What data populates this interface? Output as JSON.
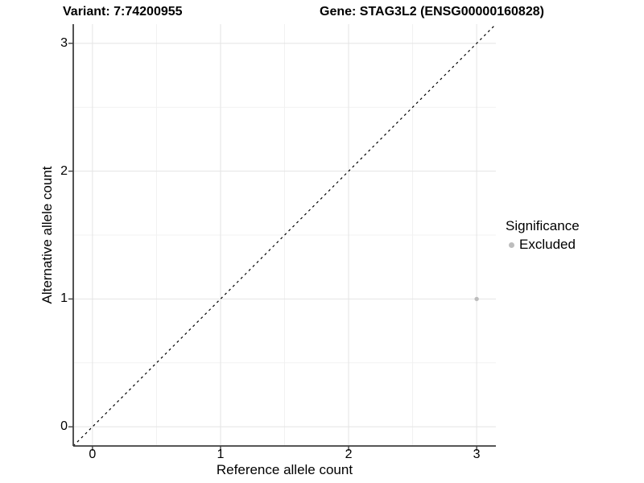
{
  "chart_data": {
    "type": "scatter",
    "title_left": "Variant: 7:74200955",
    "title_right": "Gene: STAG3L2 (ENSG00000160828)",
    "xlabel": "Reference allele count",
    "ylabel": "Alternative allele count",
    "xlim": [
      -0.15,
      3.15
    ],
    "ylim": [
      -0.15,
      3.15
    ],
    "x_ticks": [
      0,
      1,
      2,
      3
    ],
    "y_ticks": [
      0,
      1,
      2,
      3
    ],
    "minor_gridlines": [
      0.5,
      1.5,
      2.5
    ],
    "grid": "major at integers, minor at half-integers, light gray on white panel",
    "reference_line": {
      "style": "dashed",
      "equation": "y = x",
      "from": [
        -0.15,
        -0.15
      ],
      "to": [
        3.15,
        3.15
      ]
    },
    "series": [
      {
        "name": "Excluded",
        "color": "#BDBDBD",
        "points": [
          {
            "x": 3,
            "y": 1
          }
        ]
      }
    ],
    "legend": {
      "title": "Significance",
      "position": "right",
      "entries": [
        {
          "label": "Excluded",
          "color": "#BDBDBD"
        }
      ]
    }
  },
  "colors": {
    "background": "#FFFFFF",
    "grid_major": "#E4E4E4",
    "grid_minor": "#F1F1F1",
    "axis": "#3F3F3F",
    "text": "#000000",
    "reference_line": "#000000"
  }
}
